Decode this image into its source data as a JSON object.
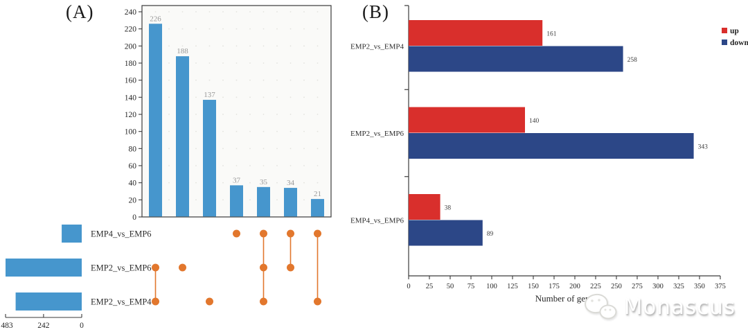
{
  "panels": {
    "a_label": "(A)",
    "b_label": "(B)"
  },
  "watermark": {
    "text": "Monascus",
    "icon": "wechat-logo-icon"
  },
  "colors": {
    "upset_bar_blue": "#4696cd",
    "upset_dot_orange": "#e2772d",
    "up_red": "#d92f2c",
    "down_navy": "#2c4787",
    "axis": "#3a3a3a",
    "bar_value_gray": "#979797",
    "plot_bg": "#fafaf8",
    "grid_dot": "#e3e3de"
  },
  "chart_data": [
    {
      "panel": "A",
      "type": "bar",
      "subtype": "upset-plot",
      "title": "",
      "ylabel": "",
      "ylim": [
        0,
        240
      ],
      "yticks": [
        0,
        20,
        40,
        60,
        80,
        100,
        120,
        140,
        160,
        180,
        200,
        220,
        240
      ],
      "intersections": [
        {
          "value": 226,
          "sets": [
            "EMP2_vs_EMP6",
            "EMP2_vs_EMP4"
          ]
        },
        {
          "value": 188,
          "sets": [
            "EMP2_vs_EMP6"
          ]
        },
        {
          "value": 137,
          "sets": [
            "EMP2_vs_EMP4"
          ]
        },
        {
          "value": 37,
          "sets": [
            "EMP4_vs_EMP6"
          ]
        },
        {
          "value": 35,
          "sets": [
            "EMP4_vs_EMP6",
            "EMP2_vs_EMP6",
            "EMP2_vs_EMP4"
          ]
        },
        {
          "value": 34,
          "sets": [
            "EMP4_vs_EMP6",
            "EMP2_vs_EMP6"
          ]
        },
        {
          "value": 21,
          "sets": [
            "EMP4_vs_EMP6",
            "EMP2_vs_EMP4"
          ]
        }
      ],
      "sets": [
        {
          "name": "EMP4_vs_EMP6",
          "size": 127
        },
        {
          "name": "EMP2_vs_EMP6",
          "size": 483
        },
        {
          "name": "EMP2_vs_EMP4",
          "size": 419
        }
      ],
      "set_size_axis": {
        "ticks": [
          483,
          242,
          0
        ],
        "max": 483
      }
    },
    {
      "panel": "B",
      "type": "bar",
      "orientation": "horizontal",
      "categories": [
        "EMP2_vs_EMP4",
        "EMP2_vs_EMP6",
        "EMP4_vs_EMP6"
      ],
      "series": [
        {
          "name": "up",
          "color": "#d92f2c",
          "values": [
            161,
            140,
            38
          ]
        },
        {
          "name": "down",
          "color": "#2c4787",
          "values": [
            258,
            343,
            89
          ]
        }
      ],
      "xlabel": "Number of gene",
      "xlim": [
        0,
        375
      ],
      "xticks": [
        0,
        25,
        50,
        75,
        100,
        125,
        150,
        175,
        200,
        225,
        250,
        275,
        300,
        325,
        350,
        375
      ],
      "legend": {
        "position": "right",
        "entries": [
          "up",
          "down"
        ]
      }
    }
  ]
}
